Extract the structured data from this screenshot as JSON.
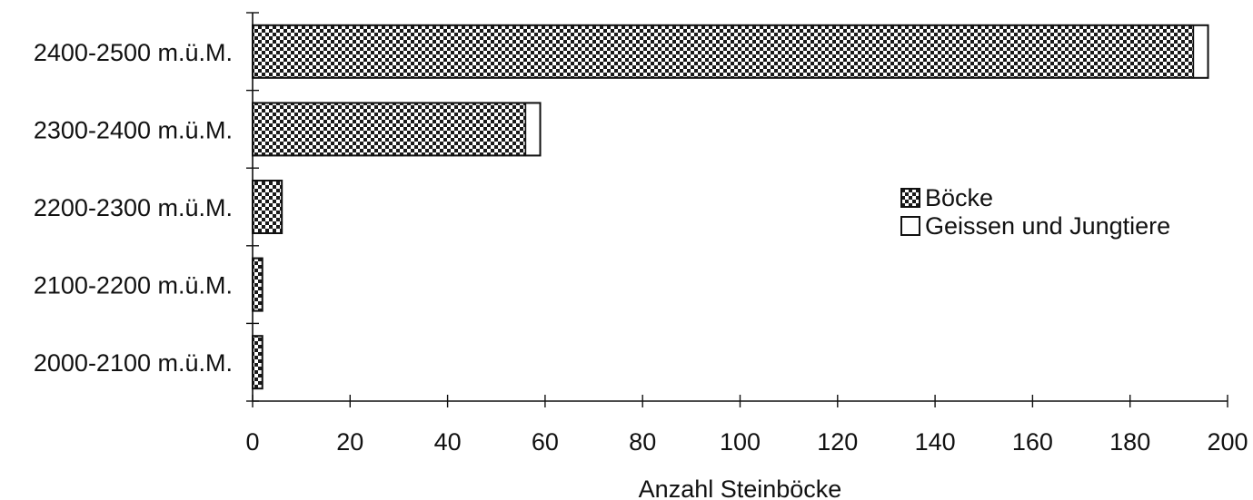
{
  "chart_data": {
    "type": "bar",
    "orientation": "horizontal",
    "stacked": true,
    "categories": [
      "2400-2500 m.ü.M.",
      "2300-2400 m.ü.M.",
      "2200-2300 m.ü.M.",
      "2100-2200 m.ü.M.",
      "2000-2100 m.ü.M."
    ],
    "series": [
      {
        "name": "Böcke",
        "values": [
          193,
          56,
          6,
          2,
          2
        ],
        "pattern": "checkerboard"
      },
      {
        "name": "Geissen und Jungtiere",
        "values": [
          3,
          3,
          0,
          0,
          0
        ],
        "pattern": "white"
      }
    ],
    "xlabel": "Anzahl Steinböcke",
    "xlim": [
      0,
      200
    ],
    "xticks": [
      "0",
      "20",
      "40",
      "60",
      "80",
      "100",
      "120",
      "140",
      "160",
      "180",
      "200"
    ],
    "grid": false,
    "legend_position": "right",
    "colors": {
      "ink": "#111111",
      "background": "#ffffff"
    }
  }
}
